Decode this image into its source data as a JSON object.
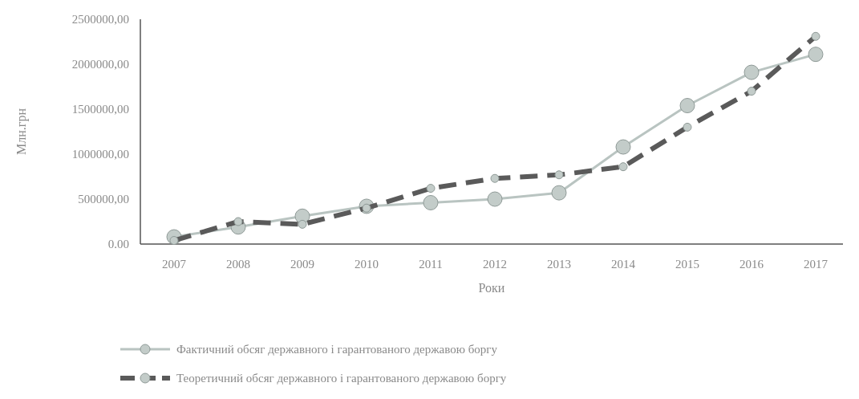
{
  "chart_data": {
    "type": "line",
    "xlabel": "Роки",
    "ylabel": "Млн.грн",
    "categories": [
      "2007",
      "2008",
      "2009",
      "2010",
      "2011",
      "2012",
      "2013",
      "2014",
      "2015",
      "2016",
      "2017"
    ],
    "series": [
      {
        "name": "Фактичний обсяг державного і гарантованого державою боргу",
        "color": "#b9c4c1",
        "line_style": "solid",
        "values": [
          80000,
          190000,
          310000,
          420000,
          460000,
          500000,
          570000,
          1080000,
          1540000,
          1910000,
          2110000
        ]
      },
      {
        "name": "Теоретичний обсяг державного і гарантованого державою боргу",
        "color": "#5a5a5a",
        "line_style": "dashed",
        "values": [
          40000,
          250000,
          220000,
          400000,
          620000,
          730000,
          770000,
          860000,
          1300000,
          1700000,
          2310000
        ]
      }
    ],
    "ylim": [
      0,
      2500000
    ],
    "yticks": [
      {
        "value": 0,
        "label": "0.00"
      },
      {
        "value": 500000,
        "label": "500000,00"
      },
      {
        "value": 1000000,
        "label": "1000000,00"
      },
      {
        "value": 1500000,
        "label": "1500000,00"
      },
      {
        "value": 2000000,
        "label": "2000000,00"
      },
      {
        "value": 2500000,
        "label": "2500000,00"
      }
    ],
    "grid": false,
    "marker": "circle",
    "legend": "bottom"
  }
}
